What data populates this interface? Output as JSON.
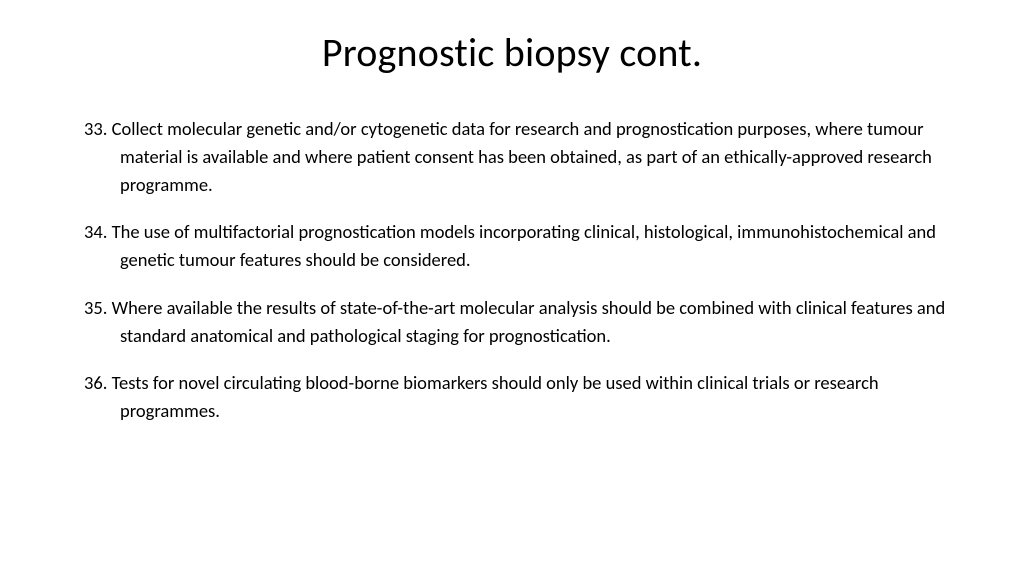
{
  "title": "Prognostic biopsy cont.",
  "title_fontsize": 40,
  "body_fontsize": 18.5,
  "text_color": "#000000",
  "background_color": "#ffffff",
  "items": [
    {
      "num": "33.",
      "text": "  Collect molecular genetic and/or cytogenetic data for research and prognostication purposes, where tumour material is available and where patient consent has been obtained, as part of an ethically-approved research programme."
    },
    {
      "num": " 34.",
      "text": " The use of multifactorial prognostication models incorporating clinical, histological, immunohistochemical and genetic tumour features should be considered."
    },
    {
      "num": " 35.",
      "text": " Where available the results of state-of-the-art molecular analysis should be combined with clinical features and standard anatomical and pathological staging for prognostication."
    },
    {
      "num": "36.",
      "text": " Tests for novel circulating blood-borne biomarkers should only be used within clinical trials or research programmes."
    }
  ]
}
